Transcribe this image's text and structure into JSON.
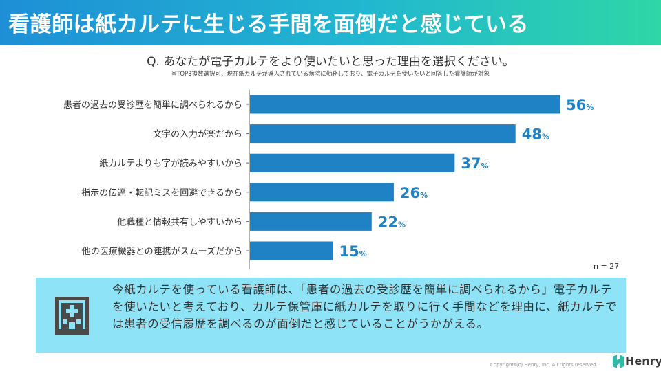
{
  "header": {
    "title": "看護師は紙カルテに生じる手間を面倒だと感じている"
  },
  "question": "Q. あなたが電子カルテをより使いたいと思った理由を選択ください。",
  "note": "※TOP3複数選択可、現在紙カルテが導入されている病院に勤務しており、電子カルテを使いたいと回答した看護師が対象",
  "chart_data": {
    "type": "bar",
    "orientation": "horizontal",
    "categories": [
      "患者の過去の受診歴を簡単に調べられるから",
      "文字の入力が楽だから",
      "紙カルテよりも字が読みやすいから",
      "指示の伝達・転記ミスを回避できるから",
      "他職種と情報共有しやすいから",
      "他の医療機器との連携がスムーズだから"
    ],
    "values": [
      56,
      48,
      37,
      26,
      22,
      15
    ],
    "unit": "%",
    "xlim": [
      0,
      56
    ],
    "sample_size": "n = 27",
    "bar_color": "#1f82c4"
  },
  "summary": {
    "icon": "hospital-icon",
    "text": "今紙カルテを使っている看護師は、「患者の過去の受診歴を簡単に調べられるから」電子カルテを使いたいと考えており、カルテ保管庫に紙カルテを取りに行く手間などを理由に、紙カルテでは患者の受信履歴を調べるのが面倒だと感じていることがうかがえる。"
  },
  "footer": {
    "copyright": "Copyrights(c) Henry, Inc. All rights reserved.",
    "brand": "Henry",
    "brand_color": "#2fb9a8"
  }
}
